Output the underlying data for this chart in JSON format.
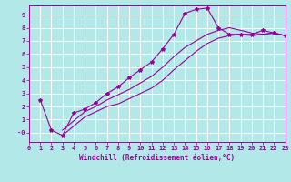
{
  "xlabel": "Windchill (Refroidissement éolien,°C)",
  "bg_color": "#b3e8e8",
  "grid_color": "#c8e8e8",
  "line_color": "#990099",
  "xlim": [
    0,
    23
  ],
  "ylim": [
    -0.7,
    9.7
  ],
  "yticks": [
    0,
    1,
    2,
    3,
    4,
    5,
    6,
    7,
    8,
    9
  ],
  "ytick_labels": [
    "-0",
    "1",
    "2",
    "3",
    "4",
    "5",
    "6",
    "7",
    "8",
    "9"
  ],
  "xticks": [
    0,
    1,
    2,
    3,
    4,
    5,
    6,
    7,
    8,
    9,
    10,
    11,
    12,
    13,
    14,
    15,
    16,
    17,
    18,
    19,
    20,
    21,
    22,
    23
  ],
  "curve1_x": [
    1,
    2,
    3,
    4,
    5,
    6,
    7,
    8,
    9,
    10,
    11,
    12,
    13,
    14,
    15,
    16,
    17,
    18,
    19,
    20,
    21,
    22,
    23
  ],
  "curve1_y": [
    2.5,
    0.2,
    -0.2,
    1.5,
    1.8,
    2.3,
    3.0,
    3.5,
    4.2,
    4.8,
    5.4,
    6.4,
    7.5,
    9.1,
    9.4,
    9.5,
    8.0,
    7.5,
    7.5,
    7.5,
    7.8,
    7.6,
    7.4
  ],
  "curve2_x": [
    3,
    4,
    5,
    6,
    7,
    8,
    9,
    10,
    11,
    12,
    13,
    14,
    15,
    16,
    17,
    18,
    19,
    20,
    21,
    22,
    23
  ],
  "curve2_y": [
    -0.2,
    0.5,
    1.2,
    1.6,
    2.0,
    2.2,
    2.6,
    3.0,
    3.4,
    4.0,
    4.8,
    5.5,
    6.2,
    6.8,
    7.2,
    7.4,
    7.5,
    7.4,
    7.5,
    7.6,
    7.4
  ],
  "curve3_x": [
    3,
    4,
    5,
    6,
    7,
    8,
    9,
    10,
    11,
    12,
    13,
    14,
    15,
    16,
    17,
    18,
    19,
    20,
    21,
    22,
    23
  ],
  "curve3_y": [
    0.2,
    0.9,
    1.6,
    2.0,
    2.5,
    2.9,
    3.3,
    3.8,
    4.3,
    5.0,
    5.8,
    6.5,
    7.0,
    7.5,
    7.8,
    8.0,
    7.8,
    7.6,
    7.5,
    7.6,
    7.4
  ]
}
